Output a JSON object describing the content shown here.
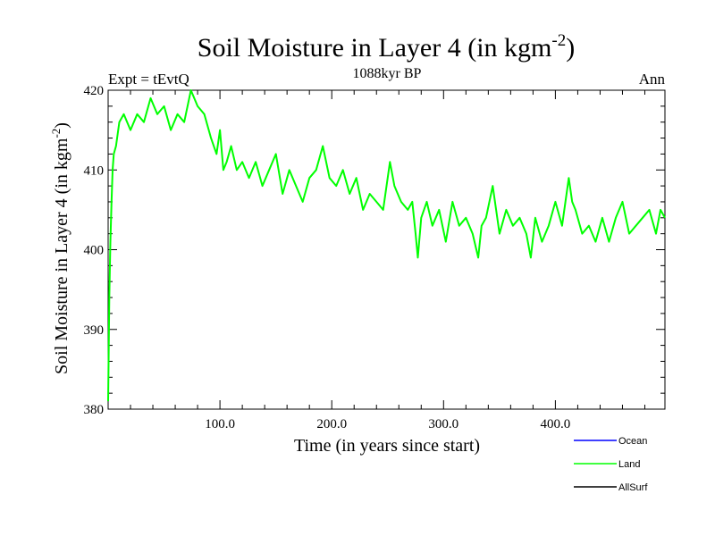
{
  "chart_data": {
    "type": "line",
    "title": "Soil Moisture in Layer 4 (in kgm",
    "title_sup": "-2",
    "title_close": ")",
    "subtitle_left": "Expt = tEvtQ",
    "subtitle_center": "1088kyr BP",
    "subtitle_right": "Ann",
    "xlabel": "Time (in years since start)",
    "ylabel": "Soil Moisture in Layer 4 (in kgm",
    "ylabel_sup": "-2",
    "ylabel_close": ")",
    "xlim": [
      0,
      498
    ],
    "ylim": [
      380,
      420
    ],
    "x_ticks": [
      100,
      200,
      300,
      400
    ],
    "x_tick_labels": [
      "100.0",
      "200.0",
      "300.0",
      "400.0"
    ],
    "y_ticks": [
      380,
      390,
      400,
      410,
      420
    ],
    "y_tick_labels": [
      "380",
      "390",
      "400",
      "410",
      "420"
    ],
    "legend": [
      {
        "name": "Ocean",
        "color": "#0000ff"
      },
      {
        "name": "Land",
        "color": "#00ff00"
      },
      {
        "name": "AllSurf",
        "color": "#000000"
      }
    ],
    "series": [
      {
        "name": "Land",
        "color": "#00ff00",
        "x": [
          0,
          1,
          2,
          3,
          4,
          5,
          7,
          10,
          14,
          20,
          26,
          32,
          38,
          44,
          50,
          56,
          62,
          68,
          74,
          80,
          86,
          92,
          97,
          100,
          103,
          106,
          110,
          115,
          120,
          126,
          132,
          138,
          144,
          150,
          156,
          162,
          168,
          174,
          180,
          186,
          192,
          198,
          204,
          210,
          216,
          222,
          228,
          234,
          240,
          246,
          252,
          256,
          262,
          268,
          272,
          275,
          277,
          280,
          285,
          290,
          296,
          302,
          308,
          314,
          320,
          326,
          331,
          334,
          338,
          344,
          350,
          356,
          362,
          368,
          374,
          378,
          382,
          388,
          394,
          400,
          406,
          412,
          415,
          418,
          424,
          430,
          436,
          442,
          448,
          454,
          460,
          466,
          472,
          478,
          484,
          490,
          494,
          498
        ],
        "values": [
          381,
          394,
          401,
          406,
          410,
          412,
          413,
          416,
          417,
          415,
          417,
          416,
          419,
          417,
          418,
          415,
          417,
          416,
          420,
          418,
          417,
          414,
          412,
          415,
          410,
          411,
          413,
          410,
          411,
          409,
          411,
          408,
          410,
          412,
          407,
          410,
          408,
          406,
          409,
          410,
          413,
          409,
          408,
          410,
          407,
          409,
          405,
          407,
          406,
          405,
          411,
          408,
          406,
          405,
          406,
          402,
          399,
          404,
          406,
          403,
          405,
          401,
          406,
          403,
          404,
          402,
          399,
          403,
          404,
          408,
          402,
          405,
          403,
          404,
          402,
          399,
          404,
          401,
          403,
          406,
          403,
          409,
          406,
          405,
          402,
          403,
          401,
          404,
          401,
          404,
          406,
          402,
          403,
          404,
          405,
          402,
          405,
          404
        ]
      }
    ]
  }
}
